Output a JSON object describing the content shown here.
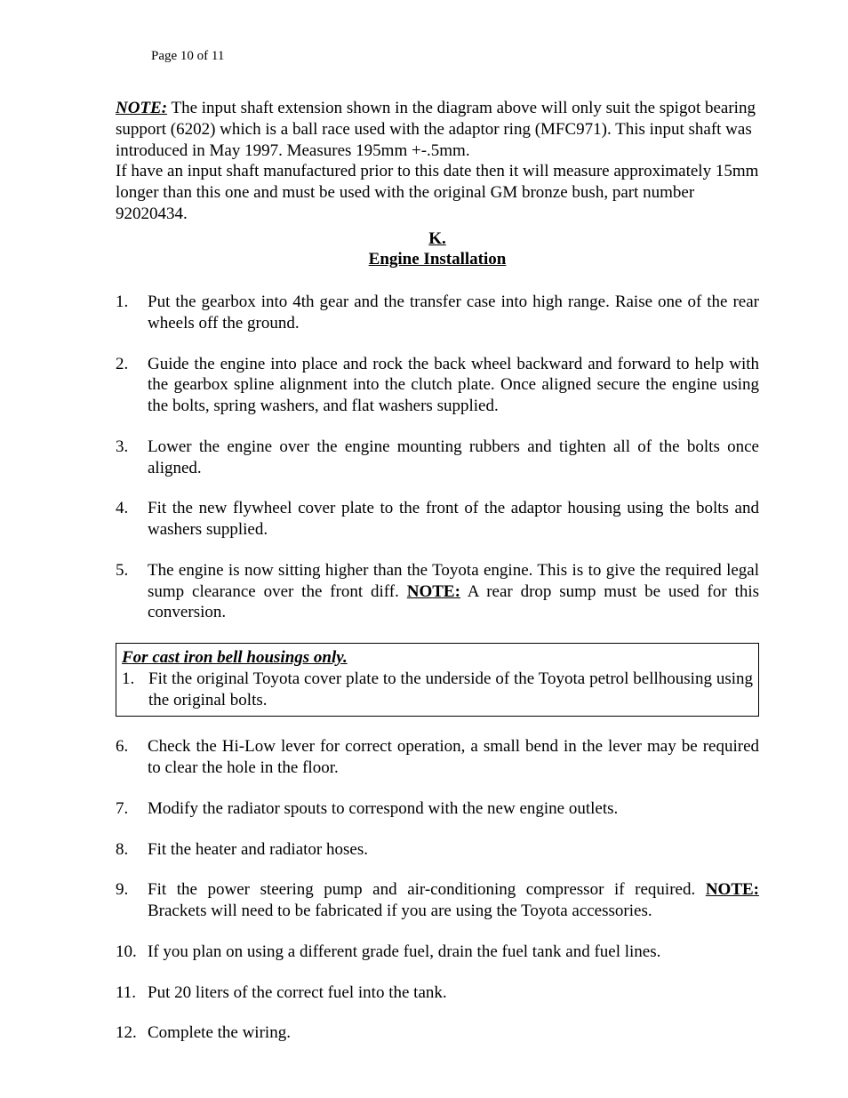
{
  "page_header": "Page 10 of 11",
  "note": {
    "label": "NOTE:",
    "body_part1": " The input shaft extension shown in the diagram above will only suit the spigot bearing support (6202) which is a ball race used with the adaptor ring (MFC971). This input shaft was introduced in May 1997. Measures 195mm +-.5mm.",
    "body_part2": "If have an input shaft manufactured prior to this date then it will measure approximately 15mm longer than this one and must be used with the original GM bronze bush, part number 92020434."
  },
  "section": {
    "letter": "K.",
    "title": "Engine Installation"
  },
  "list_a": [
    "Put the gearbox into 4th gear and the transfer case into high range. Raise one of the rear wheels off the ground.",
    "Guide the engine into place and rock the back wheel backward and forward to help with the gearbox spline alignment into the clutch plate. Once aligned secure the engine using the bolts, spring washers, and flat washers supplied.",
    "Lower the engine over the engine mounting rubbers and tighten all of the bolts once aligned.",
    "Fit the new flywheel cover plate to the front of the adaptor housing using the bolts and washers supplied."
  ],
  "item5": {
    "pre": "The engine is now sitting higher than the Toyota engine. This is to give the required legal sump clearance over the front diff. ",
    "note": "NOTE:",
    "post": " A rear drop sump must be used for this conversion."
  },
  "boxed": {
    "title": "For cast iron bell housings only.",
    "items": [
      "Fit the original Toyota cover plate to the underside of the Toyota petrol bellhousing using the original bolts."
    ]
  },
  "list_b_start": 6,
  "list_b": [
    "Check the Hi-Low lever for correct operation, a small bend in the lever may be required to clear the hole in the floor.",
    "Modify the radiator spouts to correspond with the new engine outlets.",
    "Fit the heater and radiator hoses."
  ],
  "item9": {
    "pre": "Fit the power steering pump and air-conditioning compressor if required. ",
    "note": "NOTE:",
    "post": " Brackets will need to be fabricated if you are using the Toyota accessories."
  },
  "list_c": [
    " If you plan on using a different grade fuel, drain the fuel tank and fuel lines.",
    "Put 20 liters of the correct fuel into the tank.",
    "Complete the wiring."
  ],
  "list_c_start": 10
}
